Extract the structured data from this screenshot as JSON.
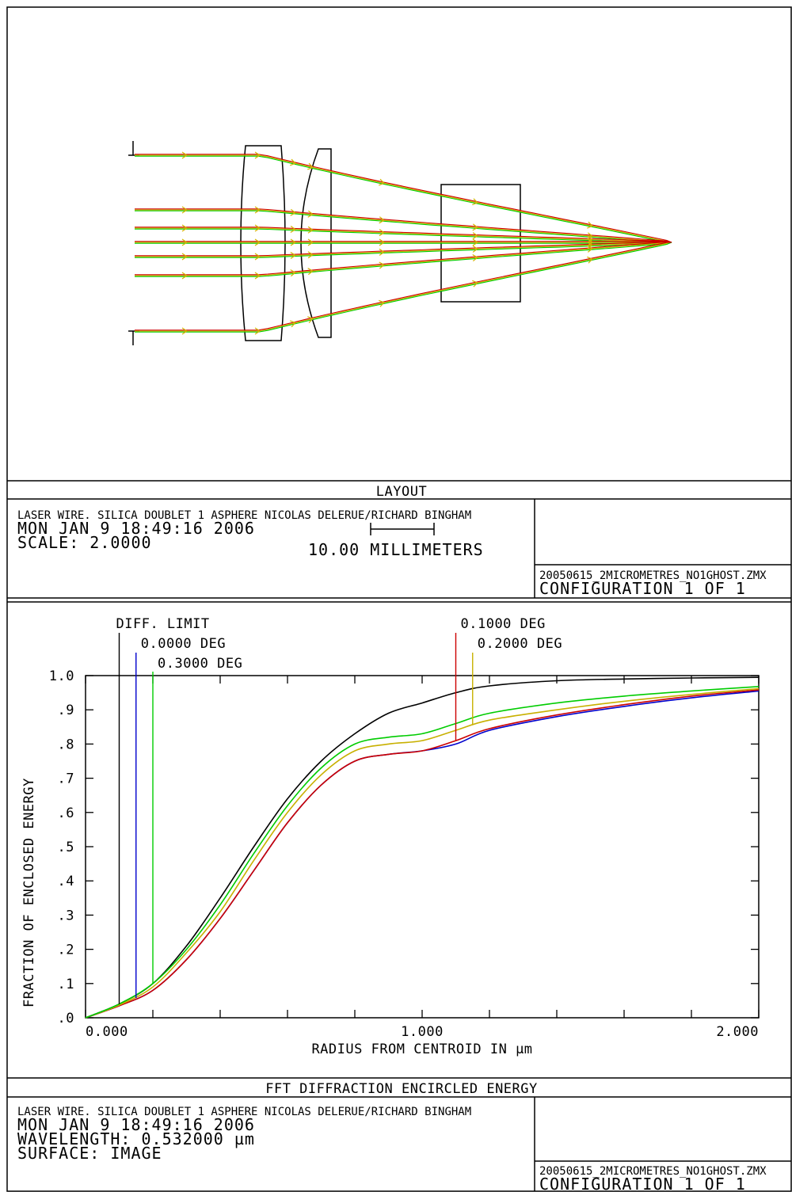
{
  "layout": {
    "title": "LAYOUT",
    "info": {
      "line1": "LASER WIRE. SILICA DOUBLET 1 ASPHERE NICOLAS DELERUE/RICHARD BINGHAM",
      "line2": "MON JAN 9 18:49:16 2006",
      "line3": "SCALE:   2.0000"
    },
    "scalebar_label": "10.00 MILLIMETERS",
    "file": "20050615_2MICROMETRES_NO1GHOST.ZMX",
    "config": "CONFIGURATION  1  OF  1",
    "ray_colors": [
      "#d4b400",
      "#00cc00",
      "#cc0000"
    ]
  },
  "energy": {
    "title": "FFT DIFFRACTION ENCIRCLED ENERGY",
    "info": {
      "line1": "LASER WIRE. SILICA DOUBLET 1 ASPHERE NICOLAS DELERUE/RICHARD BINGHAM",
      "line2": "MON JAN 9 18:49:16 2006",
      "line3": "WAVELENGTH: 0.532000 µm",
      "line4": "SURFACE:  IMAGE"
    },
    "file": "20050615_2MICROMETRES_NO1GHOST.ZMX",
    "config": "CONFIGURATION  1  OF  1"
  },
  "chart_data": {
    "type": "line",
    "title": "FFT DIFFRACTION ENCIRCLED ENERGY",
    "xlabel": "RADIUS FROM CENTROID IN µm",
    "ylabel": "FRACTION OF ENCLOSED ENERGY",
    "xlim": [
      0,
      2.0
    ],
    "ylim": [
      0,
      1.0
    ],
    "x_ticks": [
      "0.000",
      "1.000",
      "2.000"
    ],
    "y_ticks": [
      ".0",
      ".1",
      ".2",
      ".3",
      ".4",
      ".5",
      ".6",
      ".7",
      ".8",
      ".9",
      "1.0"
    ],
    "x": [
      0,
      0.1,
      0.2,
      0.3,
      0.4,
      0.5,
      0.6,
      0.7,
      0.8,
      0.9,
      1.0,
      1.1,
      1.2,
      1.4,
      1.6,
      1.8,
      2.0
    ],
    "series": [
      {
        "name": "DIFF. LIMIT",
        "color": "#000000",
        "label_x": 0.1,
        "values": [
          0,
          0.04,
          0.1,
          0.21,
          0.35,
          0.5,
          0.64,
          0.75,
          0.83,
          0.89,
          0.92,
          0.95,
          0.97,
          0.985,
          0.99,
          0.993,
          0.995
        ]
      },
      {
        "name": "0.0000 DEG",
        "color": "#0000cc",
        "label_x": 0.15,
        "values": [
          0,
          0.035,
          0.08,
          0.17,
          0.29,
          0.43,
          0.57,
          0.68,
          0.75,
          0.77,
          0.78,
          0.8,
          0.84,
          0.88,
          0.91,
          0.935,
          0.955
        ]
      },
      {
        "name": "0.1000 DEG",
        "color": "#cc0000",
        "label_x": 1.1,
        "values": [
          0,
          0.035,
          0.08,
          0.17,
          0.29,
          0.43,
          0.57,
          0.68,
          0.75,
          0.77,
          0.78,
          0.81,
          0.845,
          0.885,
          0.915,
          0.94,
          0.958
        ]
      },
      {
        "name": "0.2000 DEG",
        "color": "#c8b000",
        "label_x": 1.15,
        "values": [
          0,
          0.037,
          0.09,
          0.19,
          0.31,
          0.46,
          0.6,
          0.71,
          0.78,
          0.8,
          0.81,
          0.84,
          0.87,
          0.9,
          0.925,
          0.945,
          0.962
        ]
      },
      {
        "name": "0.3000 DEG",
        "color": "#00cc00",
        "label_x": 0.2,
        "values": [
          0,
          0.04,
          0.1,
          0.2,
          0.33,
          0.48,
          0.62,
          0.73,
          0.8,
          0.82,
          0.83,
          0.86,
          0.89,
          0.92,
          0.94,
          0.955,
          0.968
        ]
      }
    ]
  }
}
